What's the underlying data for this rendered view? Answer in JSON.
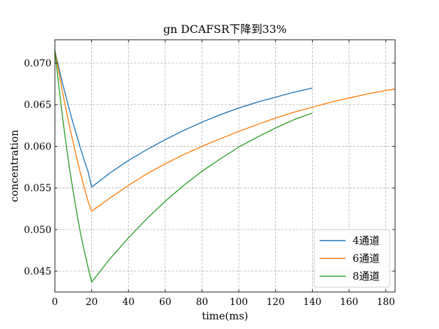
{
  "chart_data": {
    "type": "line",
    "title": "gn   DCAFSR下降到33%",
    "xlabel": "time(ms)",
    "ylabel": "concentration",
    "xlim": [
      0,
      185
    ],
    "ylim": [
      0.0425,
      0.0728
    ],
    "xticks": [
      0,
      20,
      40,
      60,
      80,
      100,
      120,
      140,
      160,
      180
    ],
    "yticks": [
      0.045,
      0.05,
      0.055,
      0.06,
      0.065,
      0.07
    ],
    "ytick_labels": [
      "0.045",
      "0.050",
      "0.055",
      "0.060",
      "0.065",
      "0.070"
    ],
    "grid": true,
    "grid_style": "dashed",
    "legend_position": "lower-right",
    "series": [
      {
        "name": "4通道",
        "color": "#1f77b4",
        "x": [
          0,
          2,
          4,
          6,
          8,
          10,
          12,
          14,
          16,
          18,
          20,
          30,
          40,
          50,
          60,
          70,
          80,
          90,
          100,
          110,
          120,
          130,
          140
        ],
        "y": [
          0.0715,
          0.0696,
          0.0677,
          0.066,
          0.0643,
          0.0627,
          0.0612,
          0.0597,
          0.0583,
          0.057,
          0.0551,
          0.0568,
          0.0583,
          0.0596,
          0.0608,
          0.0619,
          0.0629,
          0.0638,
          0.0646,
          0.0653,
          0.0659,
          0.0665,
          0.067
        ]
      },
      {
        "name": "6通道",
        "color": "#ff7f0e",
        "x": [
          0,
          2,
          4,
          6,
          8,
          10,
          12,
          14,
          16,
          18,
          20,
          30,
          40,
          50,
          60,
          70,
          80,
          90,
          100,
          110,
          120,
          130,
          140,
          150,
          160,
          170,
          180,
          185
        ],
        "y": [
          0.0715,
          0.0691,
          0.0667,
          0.0645,
          0.0624,
          0.0604,
          0.0585,
          0.0567,
          0.055,
          0.0534,
          0.0522,
          0.0538,
          0.0553,
          0.0567,
          0.0579,
          0.059,
          0.06,
          0.0609,
          0.0618,
          0.0626,
          0.0634,
          0.0641,
          0.0647,
          0.0653,
          0.0658,
          0.0663,
          0.0667,
          0.0669
        ]
      },
      {
        "name": "8通道",
        "color": "#2ca02c",
        "x": [
          0,
          2,
          4,
          6,
          8,
          10,
          12,
          14,
          16,
          18,
          20,
          30,
          40,
          50,
          60,
          70,
          80,
          90,
          100,
          110,
          120,
          130,
          140
        ],
        "y": [
          0.0715,
          0.0675,
          0.0638,
          0.0604,
          0.0573,
          0.0545,
          0.0519,
          0.0495,
          0.0474,
          0.0455,
          0.0437,
          0.0465,
          0.049,
          0.0513,
          0.0534,
          0.0553,
          0.057,
          0.0585,
          0.0599,
          0.0611,
          0.0622,
          0.0632,
          0.064
        ]
      }
    ]
  }
}
